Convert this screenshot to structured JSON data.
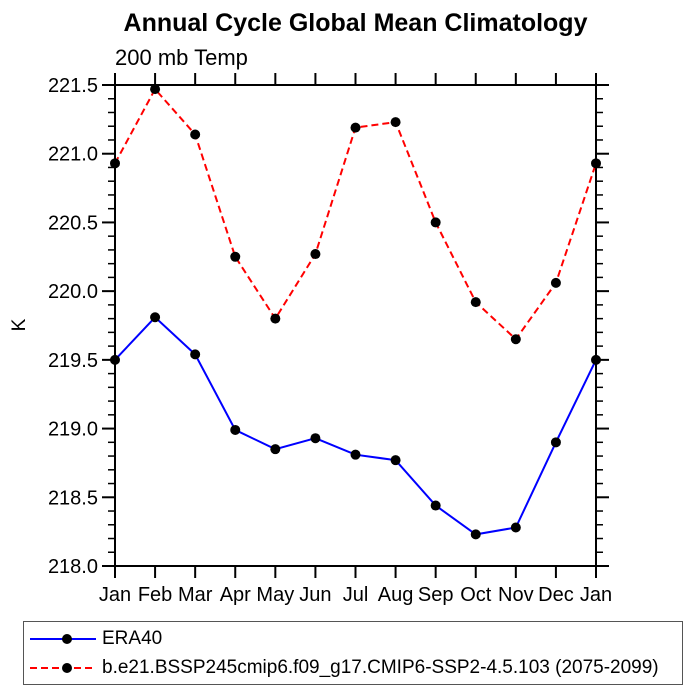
{
  "title": "Annual Cycle Global Mean Climatology",
  "subtitle": "200 mb Temp",
  "colors": {
    "axis": "#000000",
    "text": "#000000",
    "era40_line": "#0000ff",
    "model_line": "#ff0000",
    "marker": "#000000",
    "legend_border": "#555555"
  },
  "chart_data": {
    "type": "line",
    "title": "Annual Cycle Global Mean Climatology",
    "subtitle": "200 mb Temp",
    "xlabel": "",
    "ylabel": "K",
    "categories": [
      "Jan",
      "Feb",
      "Mar",
      "Apr",
      "May",
      "Jun",
      "Jul",
      "Aug",
      "Sep",
      "Oct",
      "Nov",
      "Dec",
      "Jan"
    ],
    "ylim": [
      218.0,
      221.5
    ],
    "ytick_step": 0.5,
    "yminor_step": 0.1,
    "ytick_labels": [
      "218.0",
      "218.5",
      "219.0",
      "219.5",
      "220.0",
      "220.5",
      "221.0",
      "221.5"
    ],
    "grid": false,
    "legend_position": "bottom",
    "series": [
      {
        "name": "ERA40",
        "color": "#0000ff",
        "line_style": "solid",
        "marker": "circle",
        "marker_color": "#000000",
        "values": [
          219.5,
          219.81,
          219.54,
          218.99,
          218.85,
          218.93,
          218.81,
          218.77,
          218.44,
          218.23,
          218.28,
          218.9,
          219.5
        ]
      },
      {
        "name": "b.e21.BSSP245cmip6.f09_g17.CMIP6-SSP2-4.5.103 (2075-2099)",
        "color": "#ff0000",
        "line_style": "dashed",
        "marker": "circle",
        "marker_color": "#000000",
        "values": [
          220.93,
          221.47,
          221.14,
          220.25,
          219.8,
          220.27,
          221.19,
          221.23,
          220.5,
          219.92,
          219.65,
          220.06,
          220.93
        ]
      }
    ]
  }
}
